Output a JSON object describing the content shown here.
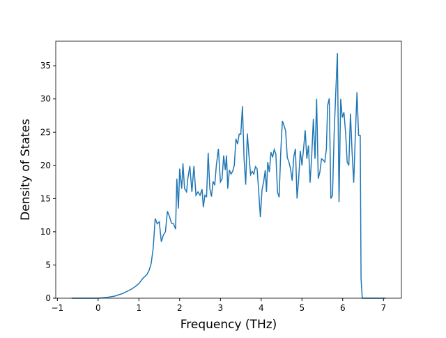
{
  "chart_data": {
    "type": "line",
    "x_label": "Frequency (THz)",
    "y_label": "Density of States",
    "x": [
      -0.65,
      0,
      0.2,
      0.4,
      0.6,
      0.8,
      0.9,
      1.0,
      1.1,
      1.2,
      1.25,
      1.3,
      1.35,
      1.4,
      1.45,
      1.5,
      1.55,
      1.6,
      1.65,
      1.7,
      1.75,
      1.8,
      1.85,
      1.9,
      1.93,
      1.97,
      2.0,
      2.05,
      2.08,
      2.12,
      2.17,
      2.2,
      2.25,
      2.3,
      2.35,
      2.4,
      2.45,
      2.5,
      2.55,
      2.58,
      2.62,
      2.66,
      2.7,
      2.74,
      2.78,
      2.82,
      2.86,
      2.9,
      2.95,
      3.0,
      3.04,
      3.08,
      3.12,
      3.15,
      3.18,
      3.22,
      3.26,
      3.3,
      3.34,
      3.38,
      3.42,
      3.46,
      3.5,
      3.54,
      3.58,
      3.62,
      3.66,
      3.7,
      3.74,
      3.78,
      3.82,
      3.86,
      3.9,
      3.94,
      3.98,
      4.02,
      4.06,
      4.1,
      4.13,
      4.16,
      4.2,
      4.24,
      4.28,
      4.32,
      4.36,
      4.4,
      4.44,
      4.48,
      4.52,
      4.56,
      4.6,
      4.64,
      4.68,
      4.72,
      4.76,
      4.8,
      4.84,
      4.88,
      4.92,
      4.96,
      5.0,
      5.04,
      5.08,
      5.12,
      5.16,
      5.2,
      5.24,
      5.28,
      5.32,
      5.36,
      5.4,
      5.44,
      5.48,
      5.52,
      5.56,
      5.6,
      5.63,
      5.67,
      5.71,
      5.75,
      5.79,
      5.83,
      5.87,
      5.91,
      5.95,
      5.99,
      6.03,
      6.07,
      6.11,
      6.15,
      6.19,
      6.23,
      6.27,
      6.31,
      6.35,
      6.39,
      6.43,
      6.45,
      6.48,
      7.05
    ],
    "series": [
      {
        "color": "#1f77b4",
        "values": [
          0,
          0,
          0.1,
          0.3,
          0.7,
          1.3,
          1.7,
          2.2,
          3.0,
          3.6,
          4.2,
          5.2,
          7.5,
          12.0,
          11.2,
          11.5,
          8.5,
          9.5,
          10.0,
          13.1,
          12.3,
          11.3,
          11.2,
          10.4,
          18.0,
          13.5,
          19.5,
          16.5,
          20.3,
          16.5,
          16.0,
          18.0,
          19.9,
          16.0,
          19.9,
          15.5,
          16.0,
          15.5,
          16.4,
          13.7,
          15.5,
          15.3,
          21.9,
          16.5,
          15.3,
          17.6,
          17.0,
          20.0,
          22.5,
          17.5,
          18.0,
          21.5,
          19.3,
          21.5,
          16.5,
          19.3,
          18.7,
          19.1,
          20.0,
          24.0,
          23.2,
          24.7,
          24.7,
          28.9,
          21.0,
          17.1,
          24.8,
          21.5,
          18.6,
          19.1,
          18.7,
          19.8,
          19.5,
          16.0,
          12.2,
          16.3,
          17.5,
          19.3,
          16.0,
          20.5,
          19.0,
          22.0,
          21.2,
          22.4,
          21.7,
          16.0,
          15.2,
          22.0,
          26.7,
          26.0,
          25.2,
          21.2,
          20.5,
          19.5,
          17.7,
          21.3,
          22.5,
          15.0,
          18.0,
          22.2,
          20.0,
          22.5,
          25.3,
          21.0,
          23.0,
          17.4,
          21.5,
          27.0,
          21.0,
          30.0,
          18.0,
          19.0,
          21.0,
          20.8,
          20.5,
          22.5,
          29.0,
          30.1,
          15.0,
          15.5,
          24.8,
          31.0,
          36.9,
          14.5,
          30.0,
          27.2,
          28.0,
          25.0,
          20.5,
          20.0,
          27.8,
          22.0,
          17.4,
          24.5,
          31.0,
          24.5,
          24.5,
          3.0,
          0,
          0
        ]
      }
    ],
    "xlim": [
      -1.04,
      7.44
    ],
    "ylim": [
      0,
      38.7
    ],
    "xticks": [
      {
        "value": -1,
        "label": "−1"
      },
      0,
      1,
      2,
      3,
      4,
      5,
      6,
      7
    ],
    "yticks": [
      0,
      5,
      10,
      15,
      20,
      25,
      30,
      35
    ]
  }
}
